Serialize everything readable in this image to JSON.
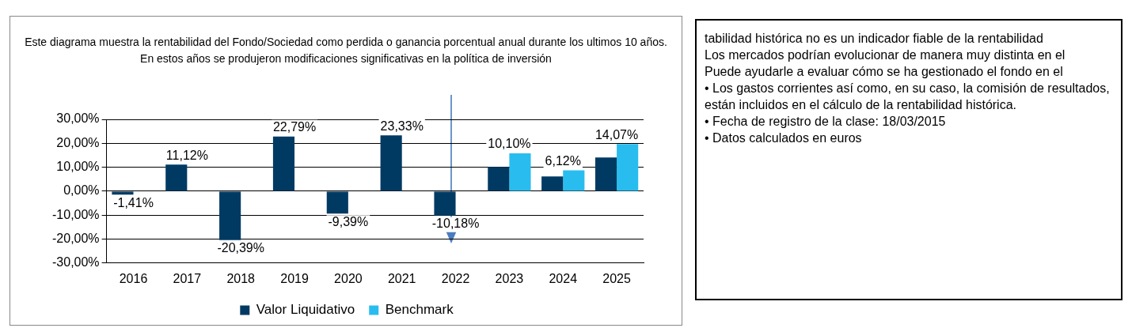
{
  "chart_data": {
    "type": "bar",
    "title": "Este diagrama muestra la rentabilidad del Fondo/Sociedad como perdida o ganancia porcentual anual durante los ultimos 10 años.",
    "subtitle": "En estos años se produjeron modificaciones significativas en la política de inversión",
    "categories": [
      "2016",
      "2017",
      "2018",
      "2019",
      "2020",
      "2021",
      "2022",
      "2023",
      "2024",
      "2025"
    ],
    "series": [
      {
        "name": "Valor Liquidativo",
        "color": "#003a63",
        "values": [
          -1.41,
          11.12,
          -20.39,
          22.79,
          -9.39,
          23.33,
          -10.18,
          10.1,
          6.12,
          14.07
        ],
        "value_labels": [
          "-1,41%",
          "11,12%",
          "-20,39%",
          "22,79%",
          "-9,39%",
          "23,33%",
          "-10,18%",
          "10,10%",
          "6,12%",
          "14,07%"
        ]
      },
      {
        "name": "Benchmark",
        "color": "#29bdef",
        "values": [
          null,
          null,
          null,
          null,
          null,
          null,
          null,
          15.8,
          8.7,
          19.7
        ]
      }
    ],
    "ylim": [
      -30,
      30
    ],
    "yticks": [
      {
        "value": -30,
        "label": "-30,00%"
      },
      {
        "value": -20,
        "label": "-20,00%"
      },
      {
        "value": -10,
        "label": "-10,00%"
      },
      {
        "value": 0,
        "label": "0,00%"
      },
      {
        "value": 10,
        "label": "10,00%"
      },
      {
        "value": 20,
        "label": "20,00%"
      },
      {
        "value": 30,
        "label": "30,00%"
      }
    ],
    "grid": "y",
    "legend": "bottom",
    "annotations": [
      "tabilidad histórica no es un indicador fiable de la rentabilidad",
      "Los mercados podrían evolucionar de manera muy distinta en el",
      "Puede ayudarle a evaluar cómo se ha gestionado el fondo en el",
      "• Los gastos corrientes así como, en su caso, la comisión de resultados, están incluidos en el cálculo de la rentabilidad histórica.",
      "• Fecha de registro de la clase: 18/03/2015",
      "• Datos calculados en euros"
    ]
  }
}
